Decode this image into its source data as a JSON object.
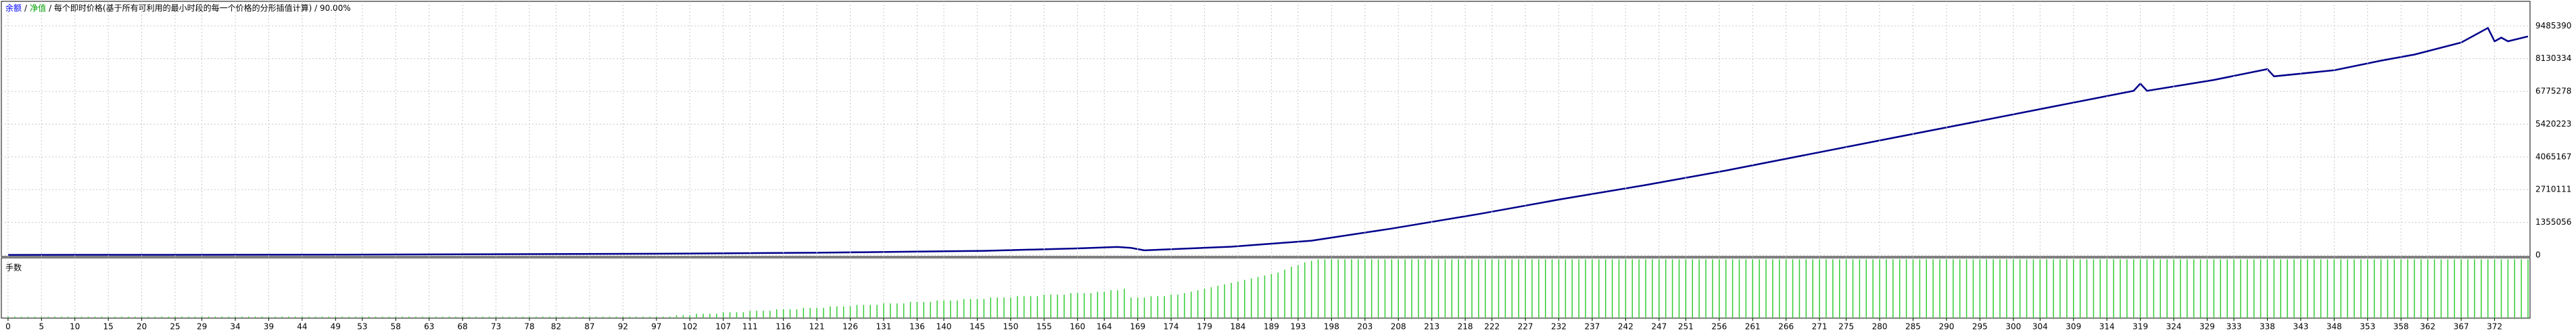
{
  "chart_data": [
    {
      "type": "line",
      "legend": [
        {
          "text": "余额",
          "color": "#0000ff"
        },
        {
          "text": "/",
          "color": "#000000"
        },
        {
          "text": "净值",
          "color": "#00a000"
        },
        {
          "text": "/ 每个即时价格(基于所有可利用的最小时段的每一个价格的分形插值计算) / 90.00%",
          "color": "#000000"
        }
      ],
      "color": "#00008b",
      "x": [
        0,
        50,
        97,
        121,
        146,
        160,
        166,
        168,
        170,
        183,
        195,
        207,
        220,
        232,
        245,
        257,
        269,
        281,
        294,
        306,
        318,
        319,
        320,
        330,
        338,
        339,
        348,
        355,
        360,
        367,
        371,
        372,
        373,
        374,
        377
      ],
      "values": [
        10000,
        20000,
        60000,
        100000,
        180000,
        280000,
        340000,
        300000,
        200000,
        350000,
        600000,
        1100000,
        1700000,
        2300000,
        2900000,
        3500000,
        4150000,
        4800000,
        5500000,
        6150000,
        6800000,
        7100000,
        6800000,
        7250000,
        7700000,
        7400000,
        7650000,
        8050000,
        8300000,
        8800000,
        9400000,
        8850000,
        9000000,
        8850000,
        9050000
      ],
      "xlim": [
        -1,
        377.3
      ],
      "ylim": [
        -56000,
        10502000
      ],
      "yticks": [
        0,
        1355056,
        2710111,
        4065167,
        5420223,
        6775278,
        8130334,
        9485390
      ],
      "grid": true
    },
    {
      "type": "bar",
      "title": "手数",
      "color": "#33cc33",
      "x": [
        0,
        1,
        2,
        3,
        4,
        5,
        6,
        7,
        8,
        9,
        10,
        11,
        12,
        13,
        14,
        15,
        16,
        17,
        18,
        19,
        20,
        21,
        22,
        23,
        24,
        25,
        26,
        27,
        28,
        29,
        30,
        31,
        32,
        33,
        34,
        35,
        36,
        37,
        38,
        39,
        40,
        41,
        42,
        43,
        44,
        45,
        46,
        47,
        48,
        49,
        50,
        51,
        52,
        53,
        54,
        55,
        56,
        57,
        58,
        59,
        60,
        61,
        62,
        63,
        64,
        65,
        66,
        67,
        68,
        69,
        70,
        71,
        72,
        73,
        74,
        75,
        76,
        77,
        78,
        79,
        80,
        81,
        82,
        83,
        84,
        85,
        86,
        87,
        88,
        89,
        90,
        91,
        92,
        93,
        94,
        95,
        96,
        97,
        98,
        99,
        100,
        101,
        102,
        103,
        104,
        105,
        106,
        107,
        108,
        109,
        110,
        111,
        112,
        113,
        114,
        115,
        116,
        117,
        118,
        119,
        120,
        121,
        122,
        123,
        124,
        125,
        126,
        127,
        128,
        129,
        130,
        131,
        132,
        133,
        134,
        135,
        136,
        137,
        138,
        139,
        140,
        141,
        142,
        143,
        144,
        145,
        146,
        147,
        148,
        149,
        150,
        151,
        152,
        153,
        154,
        155,
        156,
        157,
        158,
        159,
        160,
        161,
        162,
        163,
        164,
        165,
        166,
        167,
        168,
        169,
        170,
        171,
        172,
        173,
        174,
        175,
        176,
        177,
        178,
        179,
        180,
        181,
        182,
        183,
        184,
        185,
        186,
        187,
        188,
        189,
        190,
        191,
        192,
        193,
        194,
        195,
        196,
        197,
        198,
        199,
        200,
        201,
        202,
        203,
        204,
        205,
        206,
        207,
        208,
        209,
        210,
        211,
        212,
        213,
        214,
        215,
        216,
        217,
        218,
        219,
        220,
        221,
        222,
        223,
        224,
        225,
        226,
        227,
        228,
        229,
        230,
        231,
        232,
        233,
        234,
        235,
        236,
        237,
        238,
        239,
        240,
        241,
        242,
        243,
        244,
        245,
        246,
        247,
        248,
        249,
        250,
        251,
        252,
        253,
        254,
        255,
        256,
        257,
        258,
        259,
        260,
        261,
        262,
        263,
        264,
        265,
        266,
        267,
        268,
        269,
        270,
        271,
        272,
        273,
        274,
        275,
        276,
        277,
        278,
        279,
        280,
        281,
        282,
        283,
        284,
        285,
        286,
        287,
        288,
        289,
        290,
        291,
        292,
        293,
        294,
        295,
        296,
        297,
        298,
        299,
        300,
        301,
        302,
        303,
        304,
        305,
        306,
        307,
        308,
        309,
        310,
        311,
        312,
        313,
        314,
        315,
        316,
        317,
        318,
        319,
        320,
        321,
        322,
        323,
        324,
        325,
        326,
        327,
        328,
        329,
        330,
        331,
        332,
        333,
        334,
        335,
        336,
        337,
        338,
        339,
        340,
        341,
        342,
        343,
        344,
        345,
        346,
        347,
        348,
        349,
        350,
        351,
        352,
        353,
        354,
        355,
        356,
        357,
        358,
        359,
        360,
        361,
        362,
        363,
        364,
        365,
        366,
        367,
        368,
        369,
        370,
        371,
        372,
        373,
        374,
        375,
        376,
        377
      ],
      "values": [
        1,
        1,
        1,
        1,
        1,
        1,
        1,
        1,
        1,
        1,
        1,
        1,
        1,
        1,
        1,
        1,
        1,
        1,
        1,
        1,
        1,
        1,
        1,
        1,
        1,
        1,
        1,
        1,
        1,
        1,
        1,
        1,
        1,
        1,
        1,
        1,
        1,
        1,
        1,
        1,
        1,
        1,
        1,
        1,
        1,
        1,
        1,
        1,
        1,
        1,
        1,
        1,
        1,
        1,
        1,
        1,
        1,
        1,
        1,
        1,
        1,
        1,
        1,
        1,
        1,
        1,
        1,
        1,
        1,
        1,
        1,
        1,
        1,
        1,
        1,
        1,
        1,
        1,
        1,
        1,
        1,
        1,
        1,
        1,
        1,
        1,
        1,
        1,
        1,
        1,
        1,
        1,
        1,
        1,
        1,
        1,
        1,
        1,
        1,
        1,
        2,
        2,
        2,
        3,
        3,
        3,
        3,
        4,
        4,
        4,
        4,
        5,
        5,
        5,
        5,
        6,
        6,
        6,
        6,
        7,
        7,
        7,
        7,
        8,
        8,
        8,
        8,
        9,
        9,
        9,
        9,
        10,
        10,
        10,
        10,
        11,
        11,
        11,
        11,
        12,
        12,
        12,
        12,
        13,
        13,
        13,
        13,
        14,
        14,
        14,
        14,
        15,
        15,
        15,
        15,
        16,
        16,
        16,
        16,
        17,
        17,
        17,
        17,
        18,
        18,
        19,
        19,
        20,
        14,
        14,
        14,
        15,
        15,
        15,
        16,
        16,
        17,
        18,
        19,
        20,
        21,
        22,
        23,
        24,
        25,
        26,
        27,
        28,
        29,
        30,
        31,
        33,
        35,
        36,
        38,
        39,
        40,
        40,
        40,
        40,
        40,
        40,
        40,
        40,
        40,
        40,
        40,
        40,
        40,
        40,
        40,
        40,
        40,
        40,
        40,
        40,
        40,
        40,
        40,
        40,
        40,
        40,
        40,
        40,
        40,
        40,
        40,
        40,
        40,
        40,
        40,
        40,
        40,
        40,
        40,
        40,
        40,
        40,
        40,
        40,
        40,
        40,
        40,
        40,
        40,
        40,
        40,
        40,
        40,
        40,
        40,
        40,
        40,
        40,
        40,
        40,
        40,
        40,
        40,
        40,
        40,
        40,
        40,
        40,
        40,
        40,
        40,
        40,
        40,
        40,
        40,
        40,
        40,
        40,
        40,
        40,
        40,
        40,
        40,
        40,
        40,
        40,
        40,
        40,
        40,
        40,
        40,
        40,
        40,
        40,
        40,
        40,
        40,
        40,
        40,
        40,
        40,
        40,
        40,
        40,
        40,
        40,
        40,
        40,
        40,
        40,
        40,
        40,
        40,
        40,
        40,
        40,
        40,
        40,
        40,
        40,
        40,
        40,
        40,
        40,
        40,
        40,
        40,
        40,
        40,
        40,
        40,
        40,
        40,
        40,
        40,
        40,
        40,
        40,
        40,
        40,
        40,
        40,
        40,
        40,
        40,
        40,
        40,
        40,
        40,
        40,
        40,
        40,
        40,
        40,
        40,
        40,
        40,
        40,
        40,
        40,
        40,
        40,
        40,
        40,
        40,
        40,
        40,
        40,
        40,
        40,
        40,
        40,
        40,
        40,
        40,
        40,
        40,
        40,
        40,
        40,
        40,
        40
      ],
      "xlim": [
        -1,
        377.3
      ],
      "ylim": [
        0,
        41
      ],
      "xticks": [
        0,
        5,
        10,
        15,
        20,
        25,
        29,
        34,
        39,
        44,
        49,
        53,
        58,
        63,
        68,
        73,
        78,
        82,
        87,
        92,
        97,
        102,
        107,
        111,
        116,
        121,
        126,
        131,
        136,
        140,
        145,
        150,
        155,
        160,
        164,
        169,
        174,
        179,
        184,
        189,
        193,
        198,
        203,
        208,
        213,
        218,
        222,
        227,
        232,
        237,
        242,
        247,
        251,
        256,
        261,
        266,
        271,
        275,
        280,
        285,
        290,
        295,
        300,
        304,
        309,
        314,
        319,
        324,
        329,
        333,
        338,
        343,
        348,
        353,
        358,
        362,
        367,
        372
      ],
      "grid": true
    }
  ]
}
